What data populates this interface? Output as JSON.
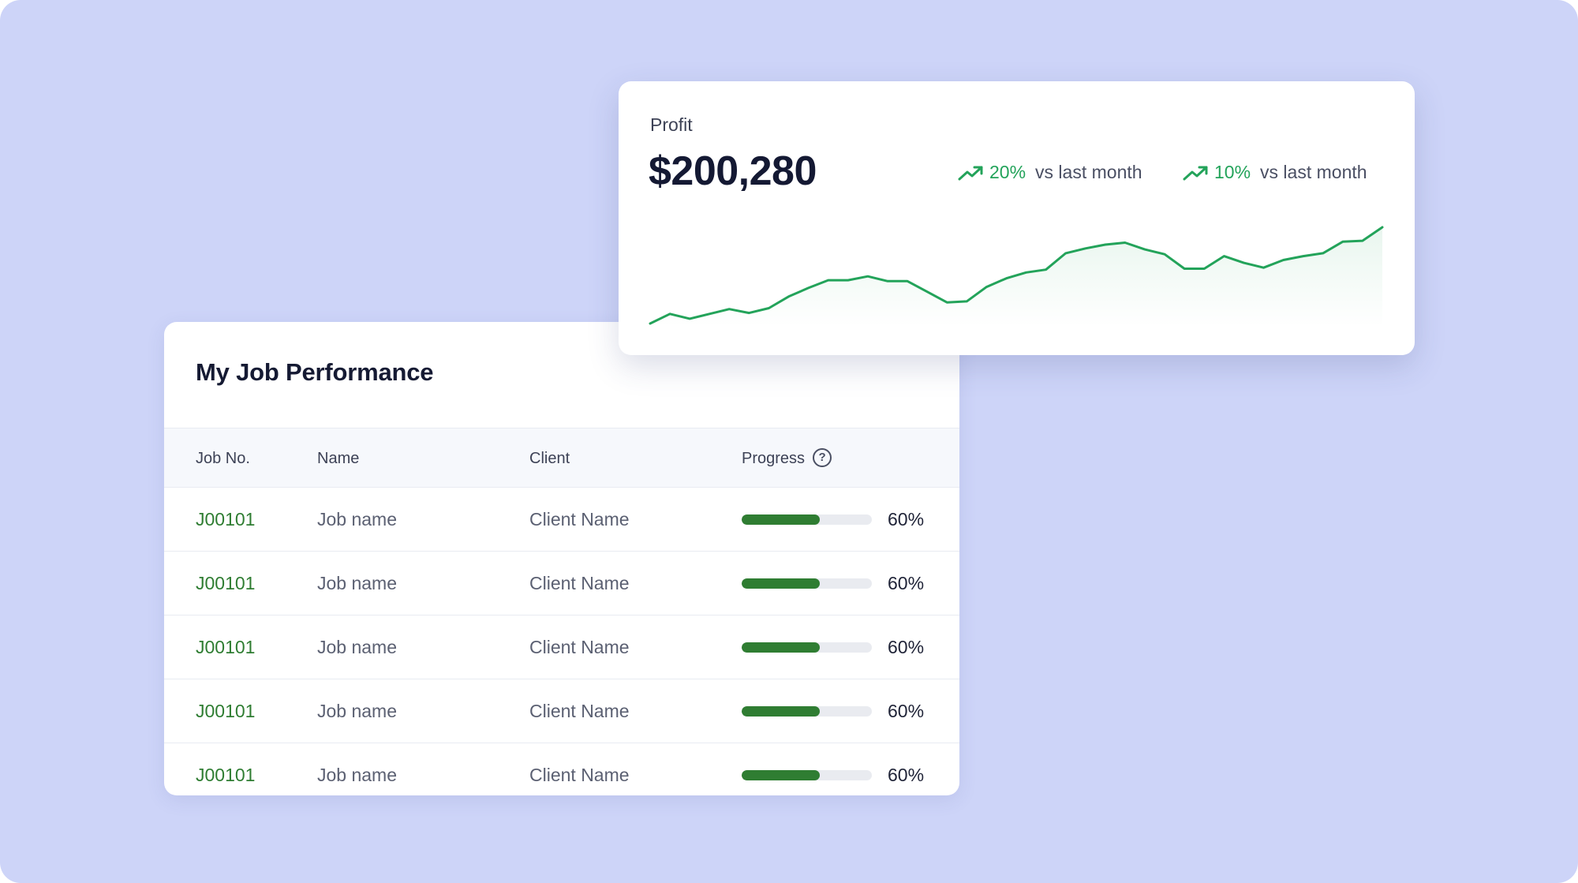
{
  "job_performance": {
    "title": "My Job Performance",
    "columns": {
      "job_no": "Job No.",
      "name": "Name",
      "client": "Client",
      "progress": "Progress"
    },
    "help_glyph": "?",
    "rows": [
      {
        "job_no": "J00101",
        "name": "Job name",
        "client": "Client Name",
        "progress": 0.6,
        "progress_label": "60%"
      },
      {
        "job_no": "J00101",
        "name": "Job name",
        "client": "Client Name",
        "progress": 0.6,
        "progress_label": "60%"
      },
      {
        "job_no": "J00101",
        "name": "Job name",
        "client": "Client Name",
        "progress": 0.6,
        "progress_label": "60%"
      },
      {
        "job_no": "J00101",
        "name": "Job name",
        "client": "Client Name",
        "progress": 0.6,
        "progress_label": "60%"
      },
      {
        "job_no": "J00101",
        "name": "Job name",
        "client": "Client Name",
        "progress": 0.6,
        "progress_label": "60%"
      }
    ]
  },
  "profit": {
    "label": "Profit",
    "value": "$200,280",
    "stats": [
      {
        "icon": "trend-up-icon",
        "percent": "20%",
        "caption": "vs last month"
      },
      {
        "icon": "trend-up-icon",
        "percent": "10%",
        "caption": "vs last month"
      }
    ],
    "sparkline": [
      0,
      10,
      5,
      10,
      15,
      11,
      16,
      28,
      37,
      45,
      45,
      49,
      44,
      44,
      33,
      22,
      23,
      38,
      47,
      53,
      56,
      73,
      78,
      82,
      84,
      77,
      72,
      57,
      57,
      70,
      63,
      58,
      66,
      70,
      73,
      85,
      86,
      100
    ]
  },
  "colors": {
    "background": "#cdd4f8",
    "accent_green": "#23a35a",
    "progress_green": "#2f7d32",
    "job_link_green": "#2f7d32"
  }
}
